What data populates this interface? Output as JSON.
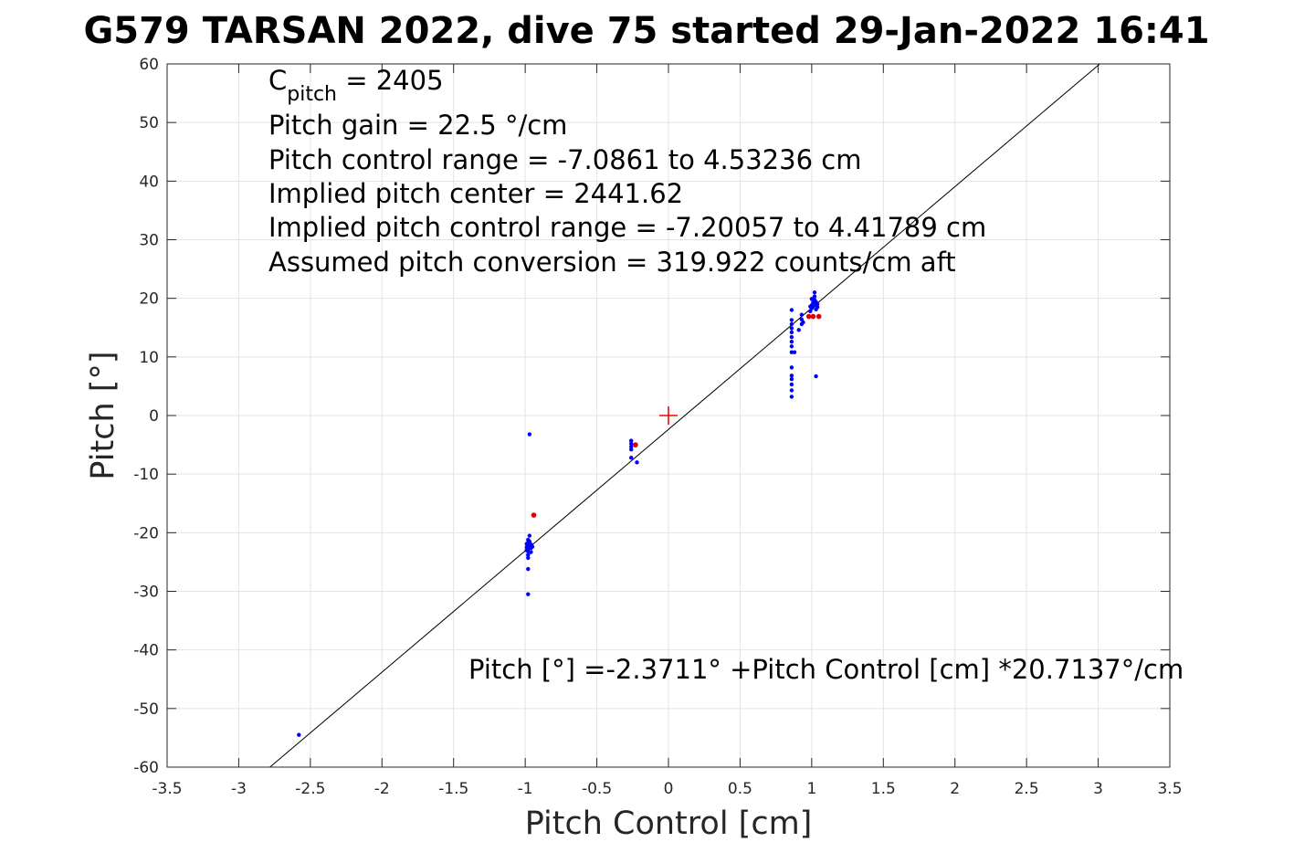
{
  "chart_data": {
    "type": "scatter",
    "title": "G579 TARSAN 2022, dive 75 started 29-Jan-2022 16:41",
    "xlabel": "Pitch Control [cm]",
    "ylabel": "Pitch [°]",
    "xlim": [
      -3.5,
      3.5
    ],
    "ylim": [
      -60,
      60
    ],
    "xticks": [
      -3.5,
      -3,
      -2.5,
      -2,
      -1.5,
      -1,
      -0.5,
      0,
      0.5,
      1,
      1.5,
      2,
      2.5,
      3,
      3.5
    ],
    "yticks": [
      -60,
      -50,
      -40,
      -30,
      -20,
      -10,
      0,
      10,
      20,
      30,
      40,
      50,
      60
    ],
    "xtick_labels": [
      "-3.5",
      "-3",
      "-2.5",
      "-2",
      "-1.5",
      "-1",
      "-0.5",
      "0",
      "0.5",
      "1",
      "1.5",
      "2",
      "2.5",
      "3",
      "3.5"
    ],
    "ytick_labels": [
      "-60",
      "-50",
      "-40",
      "-30",
      "-20",
      "-10",
      "0",
      "10",
      "20",
      "30",
      "40",
      "50",
      "60"
    ],
    "grid": true,
    "annotations": {
      "c_pitch_main": "C",
      "c_pitch_sub": "pitch",
      "c_pitch_value": " = 2405",
      "lines": [
        "Pitch gain = 22.5 °/cm",
        "Pitch control range = -7.0861 to 4.53236 cm",
        "Implied pitch center = 2441.62",
        "Implied pitch control range = -7.20057 to 4.41789 cm",
        "Assumed pitch conversion = 319.922 counts/cm aft"
      ],
      "fit_equation": "Pitch [°] =-2.3711° +Pitch Control [cm] *20.7137°/cm"
    },
    "fit_line": {
      "intercept": -2.3711,
      "slope": 20.7137,
      "color": "#000000"
    },
    "center_marker": {
      "x": 0,
      "y": 0,
      "color": "#ff0000"
    },
    "series": [
      {
        "color": "#0000ff",
        "points": [
          [
            -2.58,
            -54.5
          ],
          [
            -0.97,
            -3.2
          ],
          [
            -0.98,
            -30.5
          ],
          [
            -0.98,
            -26.2
          ],
          [
            -0.98,
            -24.3
          ],
          [
            -0.98,
            -23.8
          ],
          [
            -0.98,
            -23.2
          ],
          [
            -0.98,
            -22.7
          ],
          [
            -0.98,
            -22.2
          ],
          [
            -0.98,
            -21.7
          ],
          [
            -0.98,
            -21.2
          ],
          [
            -0.97,
            -20.5
          ],
          [
            -0.97,
            -21.5
          ],
          [
            -0.96,
            -22.0
          ],
          [
            -0.96,
            -22.6
          ],
          [
            -0.96,
            -23.3
          ],
          [
            -0.95,
            -22.4
          ],
          [
            -0.99,
            -22.5
          ],
          [
            -0.99,
            -21.9
          ],
          [
            -0.99,
            -23.0
          ],
          [
            -0.26,
            -4.3
          ],
          [
            -0.26,
            -4.8
          ],
          [
            -0.26,
            -5.3
          ],
          [
            -0.26,
            -5.8
          ],
          [
            -0.26,
            -7.2
          ],
          [
            -0.22,
            -8.0
          ],
          [
            0.86,
            3.2
          ],
          [
            0.86,
            4.3
          ],
          [
            0.86,
            5.3
          ],
          [
            0.86,
            6.2
          ],
          [
            0.86,
            6.8
          ],
          [
            0.86,
            8.2
          ],
          [
            0.86,
            10.8
          ],
          [
            0.86,
            11.8
          ],
          [
            0.86,
            12.6
          ],
          [
            0.86,
            13.4
          ],
          [
            0.86,
            14.2
          ],
          [
            0.86,
            14.9
          ],
          [
            0.86,
            15.6
          ],
          [
            0.86,
            16.3
          ],
          [
            0.86,
            18.0
          ],
          [
            0.88,
            10.8
          ],
          [
            0.91,
            14.6
          ],
          [
            0.93,
            15.6
          ],
          [
            0.93,
            16.4
          ],
          [
            0.93,
            17.2
          ],
          [
            0.94,
            15.9
          ],
          [
            0.99,
            17.8
          ],
          [
            1.0,
            18.3
          ],
          [
            1.0,
            18.8
          ],
          [
            1.01,
            19.3
          ],
          [
            1.01,
            18.6
          ],
          [
            1.02,
            19.7
          ],
          [
            1.02,
            20.3
          ],
          [
            1.02,
            21.0
          ],
          [
            1.03,
            18.9
          ],
          [
            1.03,
            19.4
          ],
          [
            1.03,
            18.1
          ],
          [
            1.04,
            19.0
          ],
          [
            1.04,
            18.5
          ],
          [
            1.0,
            19.9
          ],
          [
            0.99,
            18.6
          ],
          [
            1.03,
            6.7
          ]
        ]
      },
      {
        "color": "#dd0000",
        "points": [
          [
            -0.94,
            -17.0
          ],
          [
            -0.23,
            -5.0
          ],
          [
            0.98,
            16.9
          ],
          [
            1.01,
            16.9
          ],
          [
            1.05,
            16.9
          ]
        ]
      }
    ]
  }
}
